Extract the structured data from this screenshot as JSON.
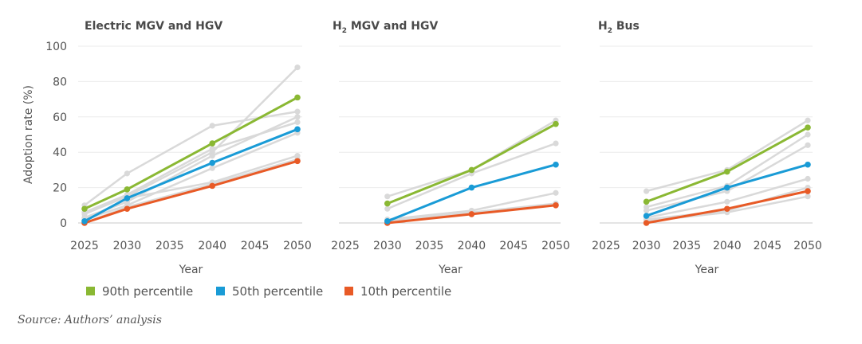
{
  "source": "Source: Authors’ analysis",
  "colors": {
    "p90": "#8ab833",
    "p50": "#199bd6",
    "p10": "#e85a26",
    "background_lines": "#d9d9d9",
    "grid": "#ebebeb"
  },
  "chart_data": {
    "type": "line",
    "ylabel": "Adoption rate (%)",
    "xlabel": "Year",
    "ylim": [
      0,
      100
    ],
    "xlim": [
      2025,
      2050
    ],
    "yticks": [
      "0",
      "20",
      "40",
      "60",
      "80",
      "100"
    ],
    "xticks": [
      "2025",
      "2030",
      "2035",
      "2040",
      "2045",
      "2050"
    ],
    "grid": "horizontal",
    "legend": {
      "placement": "bottom-left",
      "entries": [
        {
          "label": "90th percentile",
          "color": "#8ab833"
        },
        {
          "label": "50th percentile",
          "color": "#199bd6"
        },
        {
          "label": "10th percentile",
          "color": "#e85a26"
        }
      ]
    },
    "panels": [
      {
        "title": "Electric MGV and HGV",
        "title_parts": [
          "Electric MGV and HGV",
          "",
          ""
        ],
        "percentiles": {
          "p90": {
            "x": [
              2025,
              2030,
              2040,
              2050
            ],
            "y": [
              8,
              19,
              45,
              71
            ]
          },
          "p50": {
            "x": [
              2025,
              2030,
              2040,
              2050
            ],
            "y": [
              1,
              14,
              34,
              53
            ]
          },
          "p10": {
            "x": [
              2025,
              2030,
              2040,
              2050
            ],
            "y": [
              0,
              8,
              21,
              35
            ]
          }
        },
        "background_series": [
          {
            "x": [
              2025,
              2030,
              2040,
              2050
            ],
            "y": [
              10,
              28,
              55,
              63
            ]
          },
          {
            "x": [
              2025,
              2030,
              2040,
              2050
            ],
            "y": [
              5,
              15,
              40,
              88
            ]
          },
          {
            "x": [
              2025,
              2030,
              2040,
              2050
            ],
            "y": [
              3,
              12,
              38,
              60
            ]
          },
          {
            "x": [
              2025,
              2030,
              2040,
              2050
            ],
            "y": [
              6,
              16,
              42,
              57
            ]
          },
          {
            "x": [
              2025,
              2030,
              2040,
              2050
            ],
            "y": [
              2,
              10,
              31,
              51
            ]
          },
          {
            "x": [
              2025,
              2030,
              2040,
              2050
            ],
            "y": [
              1,
              14,
              23,
              38
            ]
          },
          {
            "x": [
              2025,
              2030,
              2040,
              2050
            ],
            "y": [
              0,
              9,
              22,
              36
            ]
          }
        ]
      },
      {
        "title": "H2 MGV and HGV",
        "title_parts": [
          "H",
          "2",
          " MGV and HGV"
        ],
        "percentiles": {
          "p90": {
            "x": [
              2030,
              2040,
              2050
            ],
            "y": [
              11,
              30,
              56
            ]
          },
          "p50": {
            "x": [
              2030,
              2040,
              2050
            ],
            "y": [
              1,
              20,
              33
            ]
          },
          "p10": {
            "x": [
              2030,
              2040,
              2050
            ],
            "y": [
              0,
              5,
              10
            ]
          }
        },
        "background_series": [
          {
            "x": [
              2030,
              2040,
              2050
            ],
            "y": [
              15,
              30,
              58
            ]
          },
          {
            "x": [
              2030,
              2040,
              2050
            ],
            "y": [
              8,
              28,
              45
            ]
          },
          {
            "x": [
              2030,
              2040,
              2050
            ],
            "y": [
              2,
              7,
              17
            ]
          },
          {
            "x": [
              2030,
              2040,
              2050
            ],
            "y": [
              1,
              6,
              11
            ]
          }
        ]
      },
      {
        "title": "H2 Bus",
        "title_parts": [
          "H",
          "2",
          " Bus"
        ],
        "percentiles": {
          "p90": {
            "x": [
              2030,
              2040,
              2050
            ],
            "y": [
              12,
              29,
              54
            ]
          },
          "p50": {
            "x": [
              2030,
              2040,
              2050
            ],
            "y": [
              4,
              20,
              33
            ]
          },
          "p10": {
            "x": [
              2030,
              2040,
              2050
            ],
            "y": [
              0,
              8,
              18
            ]
          }
        },
        "background_series": [
          {
            "x": [
              2030,
              2040,
              2050
            ],
            "y": [
              18,
              30,
              58
            ]
          },
          {
            "x": [
              2030,
              2040,
              2050
            ],
            "y": [
              9,
              21,
              50
            ]
          },
          {
            "x": [
              2030,
              2040,
              2050
            ],
            "y": [
              7,
              18,
              44
            ]
          },
          {
            "x": [
              2030,
              2040,
              2050
            ],
            "y": [
              3,
              12,
              25
            ]
          },
          {
            "x": [
              2030,
              2040,
              2050
            ],
            "y": [
              2,
              7,
              20
            ]
          },
          {
            "x": [
              2030,
              2040,
              2050
            ],
            "y": [
              1,
              6,
              15
            ]
          }
        ]
      }
    ]
  }
}
